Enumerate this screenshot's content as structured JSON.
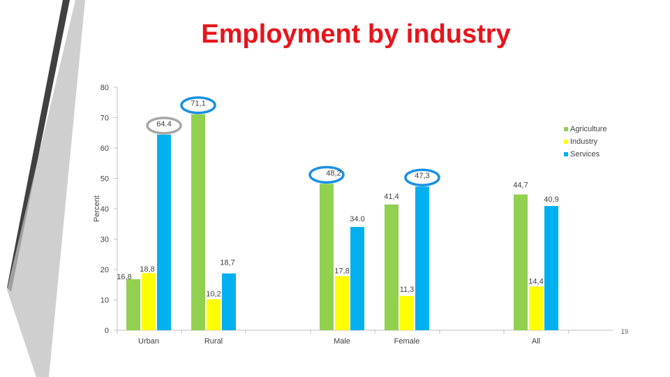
{
  "slide": {
    "title": "Employment by industry",
    "page_number": "19"
  },
  "colors": {
    "title": "#e8141b",
    "Agriculture": "#92d050",
    "Industry": "#ffff00",
    "Services": "#00b0f0",
    "highlight_blue": "#1a8fe3",
    "highlight_gray": "#a6a6a6",
    "decor_dark": "#404040",
    "decor_light": "#bfbfbf"
  },
  "chart_data": {
    "type": "bar",
    "title": "",
    "xlabel": "",
    "ylabel": "Percent",
    "ylim": [
      0,
      80
    ],
    "yticks": [
      0,
      10,
      20,
      30,
      40,
      50,
      60,
      70,
      80
    ],
    "grid": false,
    "legend_position": "right",
    "categories": [
      "Urban",
      "Rural",
      "Male",
      "Female",
      "All"
    ],
    "series": [
      {
        "name": "Agriculture",
        "values": [
          16.8,
          71.1,
          48.2,
          41.4,
          44.7
        ],
        "labels": [
          "16,8",
          "71,1",
          "48,2",
          "41,4",
          "44,7"
        ]
      },
      {
        "name": "Industry",
        "values": [
          18.8,
          10.2,
          17.8,
          11.3,
          14.4
        ],
        "labels": [
          "18,8",
          "10,2",
          "17,8",
          "11,3",
          "14,4"
        ]
      },
      {
        "name": "Services",
        "values": [
          64.4,
          18.7,
          34.0,
          47.3,
          40.9
        ],
        "labels": [
          "64.4",
          "18,7",
          "34.0",
          "47,3",
          "40,9"
        ]
      }
    ],
    "highlighted": [
      {
        "category": "Urban",
        "series": "Services",
        "color": "highlight_gray"
      },
      {
        "category": "Rural",
        "series": "Agriculture",
        "color": "highlight_blue"
      },
      {
        "category": "Male",
        "series": "Agriculture",
        "color": "highlight_blue"
      },
      {
        "category": "Female",
        "series": "Services",
        "color": "highlight_blue"
      }
    ]
  }
}
